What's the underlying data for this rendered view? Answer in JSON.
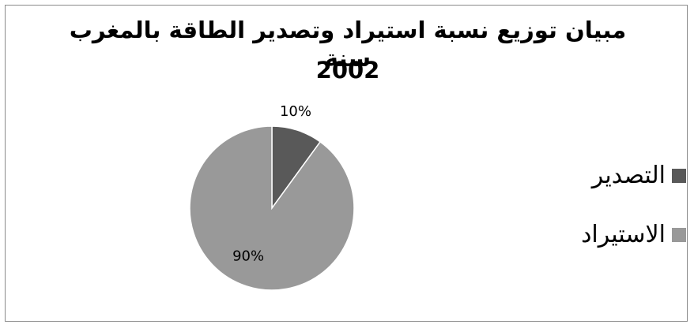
{
  "chart_data": {
    "type": "pie",
    "title": "مبيان توزيع نسبة استيراد وتصدير الطاقة بالمغرب سنة",
    "title_year": "2002",
    "slices": [
      {
        "label": "التصدير",
        "value": 10,
        "display": "10%",
        "color": "#595959"
      },
      {
        "label": "الاستيراد",
        "value": 90,
        "display": "90%",
        "color": "#999999"
      }
    ],
    "legend_position": "right",
    "slice_border_color": "#ffffff"
  }
}
